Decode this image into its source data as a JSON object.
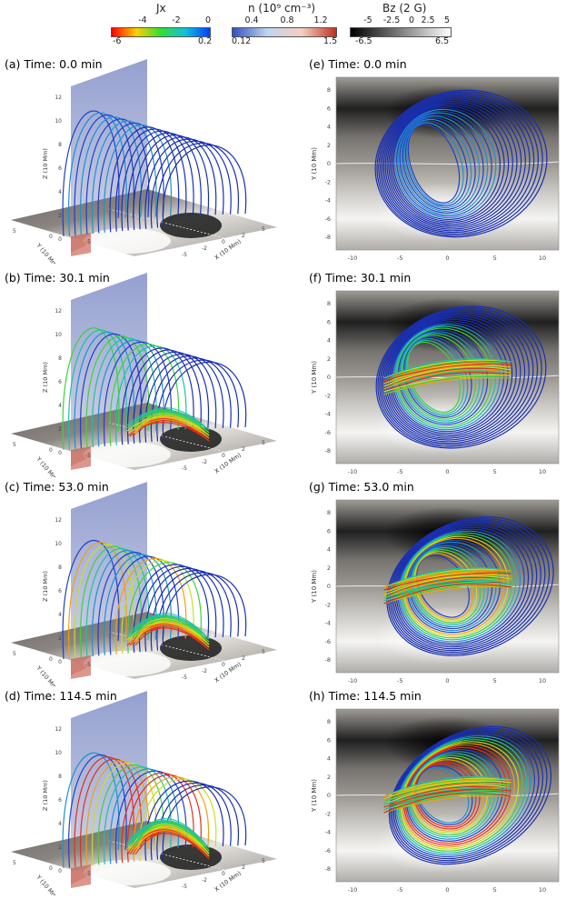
{
  "colorbars": {
    "jx": {
      "title": "Jx",
      "ticks": [
        "-4",
        "-2",
        "0"
      ],
      "min": "-6",
      "max": "0.2",
      "colors": [
        "#ff0000",
        "#ffd000",
        "#30e030",
        "#10c0e0",
        "#0040ff"
      ]
    },
    "n": {
      "title": "n (10⁹ cm⁻³)",
      "ticks": [
        "0.4",
        "0.8",
        "1.2"
      ],
      "min": "0.12",
      "max": "1.5",
      "colors": [
        "#3050c0",
        "#c0d4ee",
        "#f4d0c0",
        "#c03020"
      ]
    },
    "bz": {
      "title": "Bz (2 G)",
      "ticks": [
        "-5",
        "-2.5",
        "0",
        "2.5",
        "5"
      ],
      "min": "-6.5",
      "max": "6.5",
      "colors": [
        "#000000",
        "#ffffff"
      ]
    }
  },
  "panels": [
    {
      "id": "(a)",
      "time_label": "Time:",
      "time": "0.0 min",
      "view": "3d",
      "stage": 0
    },
    {
      "id": "(e)",
      "time_label": "Time:",
      "time": "0.0 min",
      "view": "top",
      "stage": 0
    },
    {
      "id": "(b)",
      "time_label": "Time:",
      "time": "30.1 min",
      "view": "3d",
      "stage": 1
    },
    {
      "id": "(f)",
      "time_label": "Time:",
      "time": "30.1 min",
      "view": "top",
      "stage": 1
    },
    {
      "id": "(c)",
      "time_label": "Time:",
      "time": "53.0 min",
      "view": "3d",
      "stage": 2
    },
    {
      "id": "(g)",
      "time_label": "Time:",
      "time": "53.0 min",
      "view": "top",
      "stage": 2
    },
    {
      "id": "(d)",
      "time_label": "Time:",
      "time": "114.5 min",
      "view": "3d",
      "stage": 3
    },
    {
      "id": "(h)",
      "time_label": "Time:",
      "time": "114.5 min",
      "view": "top",
      "stage": 3
    }
  ],
  "top_axes": {
    "xlabel": "X (10 Mm)",
    "ylabel": "Y (10 Mm)",
    "xticks": [
      "-10",
      "-5",
      "0",
      "5",
      "10"
    ],
    "yticks": [
      "8",
      "6",
      "4",
      "2",
      "0",
      "-2",
      "-4",
      "-6",
      "-8"
    ]
  },
  "axes3d": {
    "zlabel": "Z (10 Mm)",
    "xlabel": "X (10 Mm)",
    "ylabel": "Y (10 Mm)",
    "zticks": [
      "0",
      "2",
      "4",
      "6",
      "8",
      "10",
      "12"
    ],
    "yticks": [
      "5",
      "0",
      "-5"
    ],
    "xticks": [
      "-5",
      "-2",
      "0",
      "2",
      "5"
    ]
  }
}
